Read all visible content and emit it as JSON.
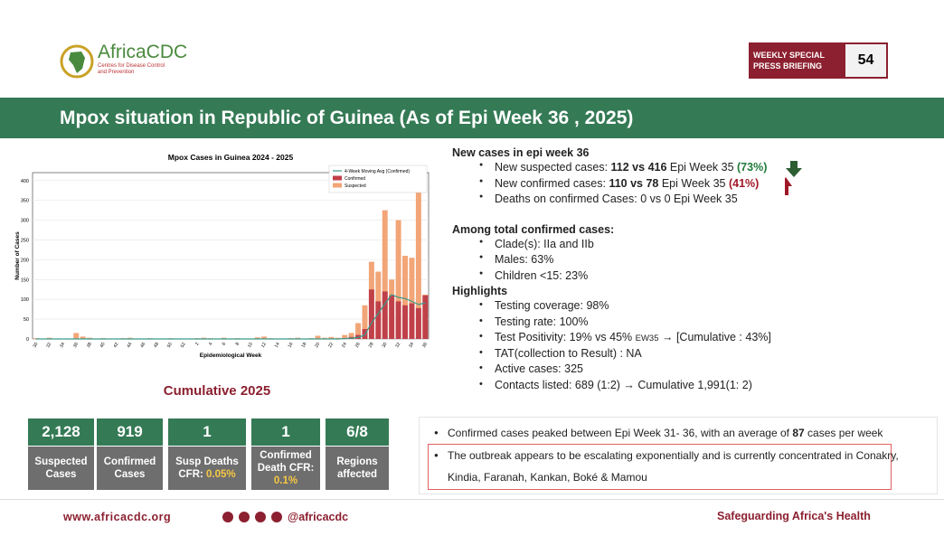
{
  "header": {
    "logo_name": "AfricaCDC",
    "logo_sub": "Centres for Disease Control and Prevention",
    "badge": "WEEKLY SPECIAL PRESS BRIEFING",
    "badge_number": "54"
  },
  "title": "Mpox situation in Republic of Guinea (As of Epi Week 36 , 2025)",
  "chart": {
    "type": "bar",
    "title": "Mpox Cases in Guinea 2024 - 2025",
    "xlabel": "Epidemiological Week",
    "ylabel": "Number of Cases",
    "categories": [
      "30",
      null,
      "32",
      null,
      "34",
      null,
      "36",
      null,
      "38",
      null,
      "40",
      null,
      "42",
      null,
      "44",
      null,
      "46",
      null,
      "48",
      null,
      "50",
      null,
      "52",
      null,
      "2",
      null,
      "4",
      null,
      "6",
      null,
      "8",
      null,
      "10",
      null,
      "12",
      null,
      "14",
      null,
      "16",
      null,
      "18",
      null,
      "20",
      null,
      "22",
      null,
      "24",
      null,
      "26",
      null,
      "28",
      null,
      "30",
      null,
      "32",
      null,
      "34",
      null,
      "36"
    ],
    "series": [
      {
        "name": "4-Week Moving Avg (Confirmed)",
        "type": "line",
        "color": "#3a9a8a",
        "values": [
          0,
          0,
          0,
          0,
          0,
          0,
          0,
          0,
          0,
          0,
          0,
          0,
          0,
          0,
          0,
          0,
          0,
          0,
          0,
          0,
          0,
          0,
          0,
          0,
          0,
          0,
          0,
          0,
          0,
          0,
          0,
          0,
          0,
          0,
          0,
          0,
          0,
          0,
          0,
          0,
          0,
          0,
          0,
          0,
          0,
          0,
          1,
          2,
          4,
          10,
          41,
          64,
          89,
          112,
          105,
          102,
          95,
          87,
          91
        ]
      },
      {
        "name": "Confirmed",
        "type": "bar",
        "color": "#c0404a",
        "values": [
          0,
          0,
          0,
          0,
          0,
          0,
          0,
          0,
          0,
          0,
          0,
          0,
          0,
          0,
          0,
          0,
          0,
          0,
          0,
          0,
          0,
          0,
          0,
          0,
          0,
          0,
          0,
          0,
          0,
          0,
          0,
          0,
          0,
          0,
          0,
          0,
          0,
          0,
          0,
          0,
          0,
          0,
          1,
          0,
          0,
          0,
          2,
          5,
          10,
          25,
          125,
          95,
          120,
          110,
          95,
          85,
          90,
          78,
          110
        ]
      },
      {
        "name": "Suspected",
        "type": "bar",
        "color": "#f2a577",
        "values": [
          2,
          0,
          3,
          0,
          0,
          0,
          15,
          6,
          3,
          1,
          2,
          1,
          0,
          2,
          3,
          1,
          0,
          2,
          1,
          0,
          2,
          0,
          1,
          0,
          2,
          3,
          2,
          1,
          3,
          0,
          2,
          0,
          1,
          4,
          6,
          2,
          1,
          0,
          2,
          3,
          1,
          2,
          8,
          3,
          5,
          3,
          10,
          15,
          40,
          85,
          195,
          170,
          325,
          150,
          300,
          210,
          205,
          416,
          112
        ]
      }
    ],
    "ylim": [
      0,
      420
    ],
    "yticks": [
      0,
      50,
      100,
      150,
      200,
      250,
      300,
      350,
      400
    ],
    "grid": true
  },
  "cumulative": {
    "title": "Cumulative 2025",
    "stats": [
      {
        "value": "2,128",
        "label": "Suspected Cases"
      },
      {
        "value": "919",
        "label": "Confirmed Cases"
      },
      {
        "value": "1",
        "label": "Susp Deaths CFR:",
        "highlight": "0.05%"
      },
      {
        "value": "1",
        "label": "Confirmed Death CFR:",
        "highlight": "0.1%"
      },
      {
        "value": "6/8",
        "label": "Regions affected"
      }
    ]
  },
  "sections": [
    {
      "heading": "New cases in epi week 36",
      "items": [
        [
          {
            "text": "New suspected cases: "
          },
          {
            "text": "112 vs 416",
            "style": "bold"
          },
          {
            "text": " Epi Week 35 "
          },
          {
            "text": "(73%)",
            "style": "green"
          }
        ],
        [
          {
            "text": "New confirmed cases: "
          },
          {
            "text": "110 vs 78",
            "style": "bold"
          },
          {
            "text": " Epi Week 35 "
          },
          {
            "text": "(41%)",
            "style": "red"
          }
        ],
        [
          {
            "text": "Deaths on confirmed Cases: 0 vs 0  Epi Week 35"
          }
        ]
      ]
    },
    {
      "heading": "Among total confirmed cases:",
      "items": [
        [
          {
            "text": "Clade(s): IIa and IIb"
          }
        ],
        [
          {
            "text": "Males: 63%"
          }
        ],
        [
          {
            "text": "Children <15: 23%"
          }
        ]
      ]
    },
    {
      "heading": "Highlights",
      "items": [
        [
          {
            "text": "Testing coverage: 98%"
          }
        ],
        [
          {
            "text": "Testing rate: 100%"
          }
        ],
        [
          {
            "text": "Test Positivity: 19% vs 45% "
          },
          {
            "text": "EW35",
            "style": "small"
          },
          {
            "text": " →  [Cumulative : 43%]"
          }
        ],
        [
          {
            "text": "TAT(collection to Result) : NA"
          }
        ],
        [
          {
            "text": "Active cases: 325"
          }
        ],
        [
          {
            "text": "Contacts listed: 689 (1:2)     → Cumulative 1,991(1: 2)"
          }
        ]
      ]
    }
  ],
  "notes": [
    [
      {
        "text": "Confirmed cases peaked between Epi Week 31- 36, with an average of "
      },
      {
        "text": "87",
        "style": "bold"
      },
      {
        "text": " cases per week"
      }
    ],
    [
      {
        "text": "The outbreak appears to be escalating exponentially and is currently concentrated in Conakry, Kindia, Faranah, Kankan, Boké & Mamou"
      }
    ]
  ],
  "footer": {
    "url": "www.africacdc.org",
    "handle": "@africacdc",
    "slogan": "Safeguarding Africa's Health"
  }
}
